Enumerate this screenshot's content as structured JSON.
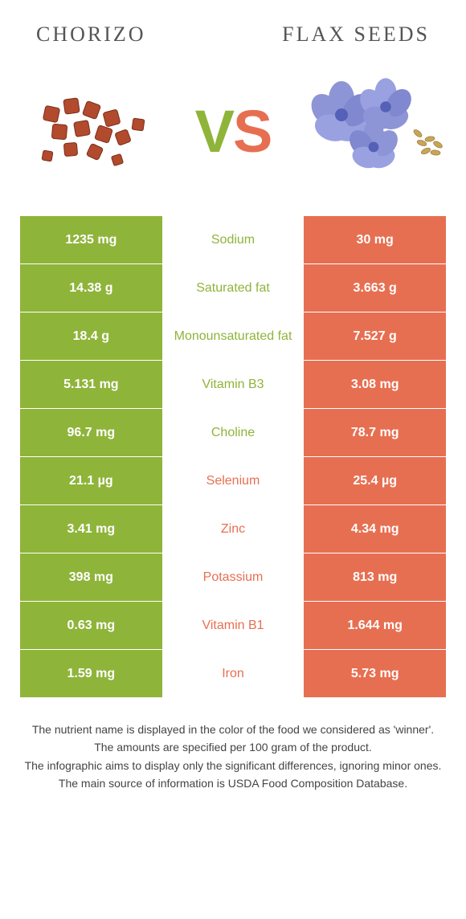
{
  "colors": {
    "green": "#8fb43a",
    "orange": "#e76f51",
    "text": "#555555"
  },
  "left_title": "CHORIZO",
  "right_title": "FLAX SEEDS",
  "vs_v": "V",
  "vs_s": "S",
  "rows": [
    {
      "left": "1235 mg",
      "label": "Sodium",
      "right": "30 mg",
      "winner": "left"
    },
    {
      "left": "14.38 g",
      "label": "Saturated fat",
      "right": "3.663 g",
      "winner": "left"
    },
    {
      "left": "18.4 g",
      "label": "Monounsaturated fat",
      "right": "7.527 g",
      "winner": "left"
    },
    {
      "left": "5.131 mg",
      "label": "Vitamin B3",
      "right": "3.08 mg",
      "winner": "left"
    },
    {
      "left": "96.7 mg",
      "label": "Choline",
      "right": "78.7 mg",
      "winner": "left"
    },
    {
      "left": "21.1 µg",
      "label": "Selenium",
      "right": "25.4 µg",
      "winner": "right"
    },
    {
      "left": "3.41 mg",
      "label": "Zinc",
      "right": "4.34 mg",
      "winner": "right"
    },
    {
      "left": "398 mg",
      "label": "Potassium",
      "right": "813 mg",
      "winner": "right"
    },
    {
      "left": "0.63 mg",
      "label": "Vitamin B1",
      "right": "1.644 mg",
      "winner": "right"
    },
    {
      "left": "1.59 mg",
      "label": "Iron",
      "right": "5.73 mg",
      "winner": "right"
    }
  ],
  "footer": [
    "The nutrient name is displayed in the color of the food we considered as 'winner'.",
    "The amounts are specified per 100 gram of the product.",
    "The infographic aims to display only the significant differences, ignoring minor ones.",
    "The main source of information is USDA Food Composition Database."
  ]
}
